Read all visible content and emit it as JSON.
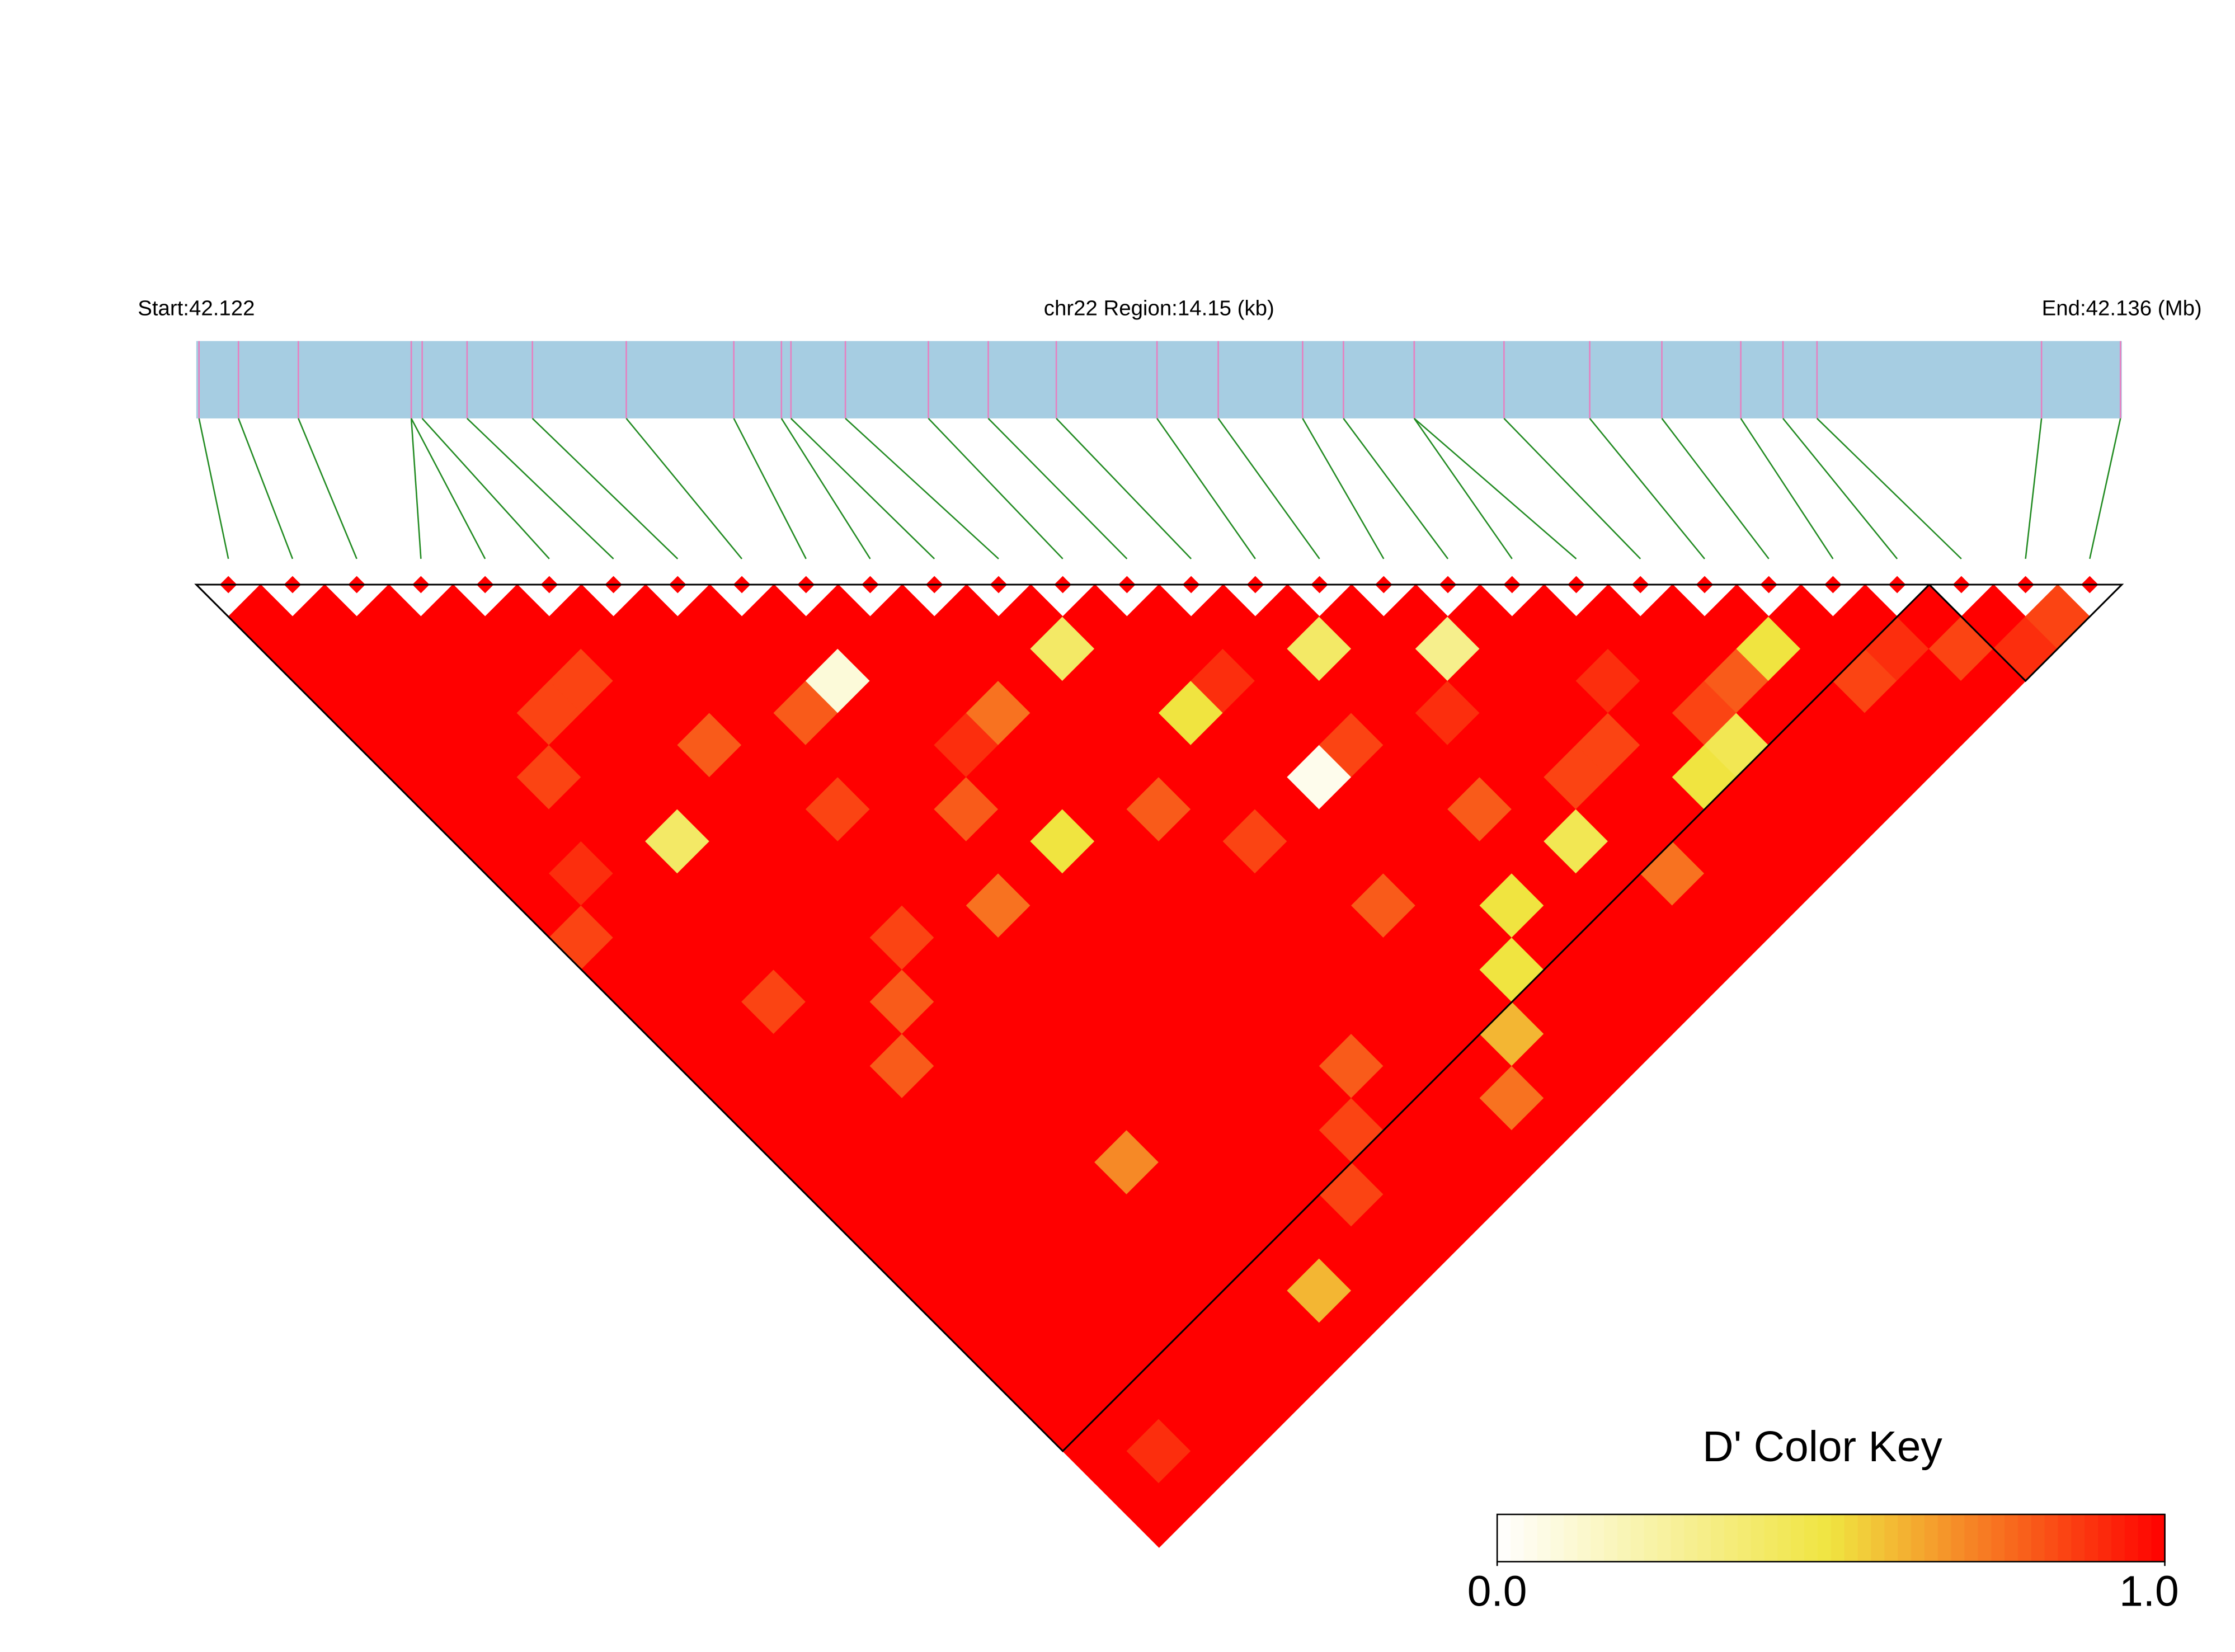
{
  "chart_data": {
    "type": "ld_heatmap",
    "start_label": "Start:42.122",
    "region_label": "chr22 Region:14.15 (kb)",
    "end_label": "End:42.136 (Mb)",
    "xlim": [
      0,
      14.15
    ],
    "positions": [
      0.02,
      0.31,
      0.75,
      1.58,
      1.58,
      1.66,
      1.99,
      2.47,
      3.16,
      3.95,
      4.3,
      4.37,
      4.77,
      5.38,
      5.82,
      6.32,
      7.06,
      7.51,
      8.13,
      8.43,
      8.95,
      8.95,
      9.61,
      10.24,
      10.77,
      11.35,
      11.66,
      11.91,
      13.56,
      14.14
    ],
    "dprime": [
      [
        1,
        1,
        1,
        1,
        1,
        1,
        1,
        1,
        1,
        1,
        0.85,
        1,
        1,
        1,
        1,
        1,
        1,
        1,
        1,
        1,
        1,
        1,
        1,
        1,
        1,
        1,
        1,
        1,
        1
      ],
      [
        1,
        1,
        1,
        1,
        1,
        1,
        1,
        1,
        0.9,
        1,
        1,
        1,
        1,
        1,
        1,
        1,
        1,
        1,
        1,
        1,
        1,
        1,
        1,
        1,
        1,
        1,
        0.9,
        1
      ],
      [
        1,
        1,
        1,
        1,
        1,
        0.85,
        1,
        1,
        1,
        1,
        1,
        1,
        0.85,
        1,
        1,
        1,
        1,
        1,
        1,
        1,
        1,
        1,
        1,
        1,
        1,
        1,
        1
      ],
      [
        1,
        1,
        1,
        0.85,
        1,
        1,
        1,
        0.4,
        1,
        1,
        1,
        1,
        1,
        1,
        0.8,
        1,
        1,
        1,
        1,
        1,
        1,
        1,
        1,
        1,
        1,
        1
      ],
      [
        1,
        1,
        0.85,
        1,
        1,
        1,
        1,
        1,
        1,
        1,
        1,
        1,
        0.8,
        1,
        1,
        1,
        1,
        1,
        1,
        1,
        1,
        1,
        1,
        1,
        1
      ],
      [
        1,
        1,
        1,
        1,
        0.8,
        1,
        1,
        1,
        1,
        1,
        0.85,
        1,
        1,
        1,
        1,
        1,
        1,
        0.7,
        1,
        1,
        1,
        1,
        1,
        1
      ],
      [
        1,
        1,
        1,
        1,
        1,
        1,
        0.85,
        1,
        1,
        1,
        1,
        1,
        1,
        1,
        1,
        1,
        1,
        1,
        1,
        1,
        1,
        0.6,
        1
      ],
      [
        1,
        1,
        1,
        0.8,
        1,
        1,
        1,
        1,
        1,
        0.75,
        1,
        1,
        1,
        1,
        1,
        1,
        1,
        1,
        1,
        1,
        1,
        1
      ],
      [
        1,
        1,
        0.1,
        1,
        1,
        1,
        0.8,
        1,
        1,
        1,
        1,
        1,
        1,
        1,
        1,
        1,
        1,
        1,
        0.85,
        1,
        1
      ],
      [
        1,
        1,
        1,
        1,
        0.9,
        1,
        1,
        0.5,
        1,
        1,
        1,
        1,
        1,
        1,
        1,
        1,
        0.85,
        1,
        1,
        1
      ],
      [
        1,
        1,
        1,
        0.75,
        1,
        1,
        1,
        1,
        1,
        1,
        1,
        1,
        1,
        1,
        0.8,
        1,
        1,
        1,
        1
      ],
      [
        1,
        1,
        1,
        1,
        1,
        1,
        0.8,
        1,
        1,
        1,
        1,
        1,
        1,
        1,
        1,
        1,
        1,
        1
      ],
      [
        1,
        0.4,
        1,
        1,
        1,
        1,
        1,
        0.85,
        1,
        1,
        1,
        1,
        1,
        1,
        1,
        0.75,
        1
      ],
      [
        1,
        1,
        1,
        0.5,
        1,
        1,
        1,
        1,
        1,
        0.8,
        1,
        1,
        1,
        0.6,
        1,
        1
      ],
      [
        1,
        1,
        0.9,
        1,
        1,
        0.05,
        1,
        1,
        1,
        1,
        1,
        0.5,
        1,
        1,
        1
      ],
      [
        1,
        1,
        1,
        1,
        0.85,
        1,
        1,
        1,
        1,
        0.5,
        1,
        1,
        1,
        1
      ],
      [
        1,
        0.4,
        1,
        1,
        1,
        1,
        0.8,
        1,
        1,
        1,
        1,
        1,
        1
      ],
      [
        1,
        1,
        1,
        0.9,
        1,
        1,
        1,
        0.45,
        1,
        1,
        1,
        1
      ],
      [
        1,
        0.3,
        1,
        1,
        1,
        0.85,
        1,
        1,
        0.75,
        1,
        1
      ],
      [
        1,
        1,
        1,
        1,
        0.85,
        1,
        1,
        1,
        1,
        1
      ],
      [
        1,
        1,
        0.9,
        1,
        1,
        0.5,
        1,
        1,
        1
      ],
      [
        1,
        1,
        1,
        0.85,
        0.45,
        1,
        1,
        1
      ],
      [
        1,
        1,
        0.8,
        1,
        1,
        1,
        1
      ],
      [
        1,
        0.5,
        1,
        1,
        1,
        1
      ],
      [
        1,
        1,
        0.85,
        1,
        1
      ],
      [
        1,
        0.9,
        1,
        1
      ],
      [
        1,
        0.85,
        1
      ],
      [
        1,
        0.9
      ],
      [
        0.85
      ]
    ],
    "blocks": [
      [
        0,
        26
      ],
      [
        27,
        29
      ]
    ],
    "colors": [
      "#ffffff",
      "#f0e440",
      "#ff0000"
    ],
    "key_title": "D' Color Key",
    "key_ticks": [
      {
        "value": 0,
        "label": "0.0"
      },
      {
        "value": 1,
        "label": "1.0"
      }
    ]
  }
}
